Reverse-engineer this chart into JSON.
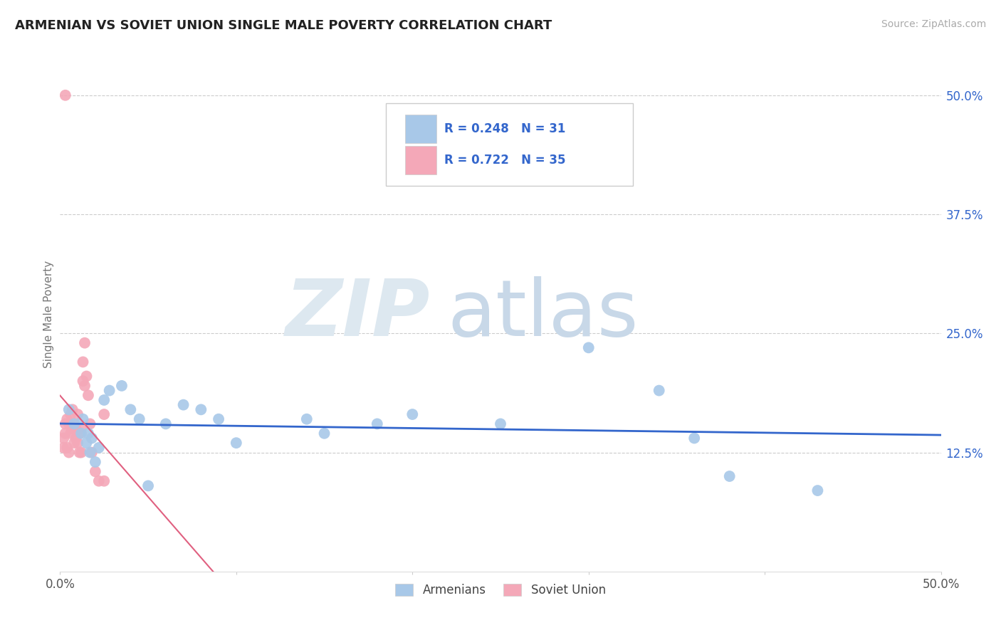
{
  "title": "ARMENIAN VS SOVIET UNION SINGLE MALE POVERTY CORRELATION CHART",
  "source": "Source: ZipAtlas.com",
  "ylabel": "Single Male Poverty",
  "xlim": [
    0.0,
    0.5
  ],
  "ylim": [
    0.0,
    0.54
  ],
  "ytick_positions_right": [
    0.125,
    0.25,
    0.375,
    0.5
  ],
  "ytick_labels_right": [
    "12.5%",
    "25.0%",
    "37.5%",
    "50.0%"
  ],
  "grid_color": "#cccccc",
  "background_color": "#ffffff",
  "armenian_color": "#a8c8e8",
  "soviet_color": "#f4a8b8",
  "armenian_line_color": "#3366cc",
  "soviet_line_color": "#e06080",
  "armenian_R": 0.248,
  "armenian_N": 31,
  "soviet_R": 0.722,
  "soviet_N": 35,
  "legend_text_color_blue": "#3366cc",
  "legend_value_color": "#3366cc",
  "armenian_x": [
    0.005,
    0.008,
    0.012,
    0.013,
    0.015,
    0.016,
    0.017,
    0.018,
    0.02,
    0.022,
    0.025,
    0.028,
    0.035,
    0.04,
    0.045,
    0.05,
    0.06,
    0.07,
    0.08,
    0.09,
    0.1,
    0.14,
    0.15,
    0.18,
    0.2,
    0.25,
    0.3,
    0.34,
    0.36,
    0.38,
    0.43
  ],
  "armenian_y": [
    0.17,
    0.155,
    0.145,
    0.16,
    0.135,
    0.145,
    0.125,
    0.14,
    0.115,
    0.13,
    0.18,
    0.19,
    0.195,
    0.17,
    0.16,
    0.09,
    0.155,
    0.175,
    0.17,
    0.16,
    0.135,
    0.16,
    0.145,
    0.155,
    0.165,
    0.155,
    0.235,
    0.19,
    0.14,
    0.1,
    0.085
  ],
  "soviet_x": [
    0.002,
    0.002,
    0.003,
    0.003,
    0.004,
    0.004,
    0.005,
    0.005,
    0.006,
    0.006,
    0.007,
    0.007,
    0.008,
    0.008,
    0.009,
    0.009,
    0.01,
    0.01,
    0.011,
    0.011,
    0.012,
    0.012,
    0.013,
    0.013,
    0.014,
    0.014,
    0.015,
    0.016,
    0.017,
    0.018,
    0.02,
    0.022,
    0.025,
    0.025,
    0.003
  ],
  "soviet_y": [
    0.14,
    0.13,
    0.155,
    0.145,
    0.16,
    0.13,
    0.155,
    0.125,
    0.165,
    0.145,
    0.17,
    0.15,
    0.155,
    0.135,
    0.15,
    0.14,
    0.165,
    0.135,
    0.145,
    0.125,
    0.15,
    0.125,
    0.22,
    0.2,
    0.24,
    0.195,
    0.205,
    0.185,
    0.155,
    0.125,
    0.105,
    0.095,
    0.165,
    0.095,
    0.5
  ],
  "watermark_zip_color": "#dde8f0",
  "watermark_atlas_color": "#c8d8e8"
}
